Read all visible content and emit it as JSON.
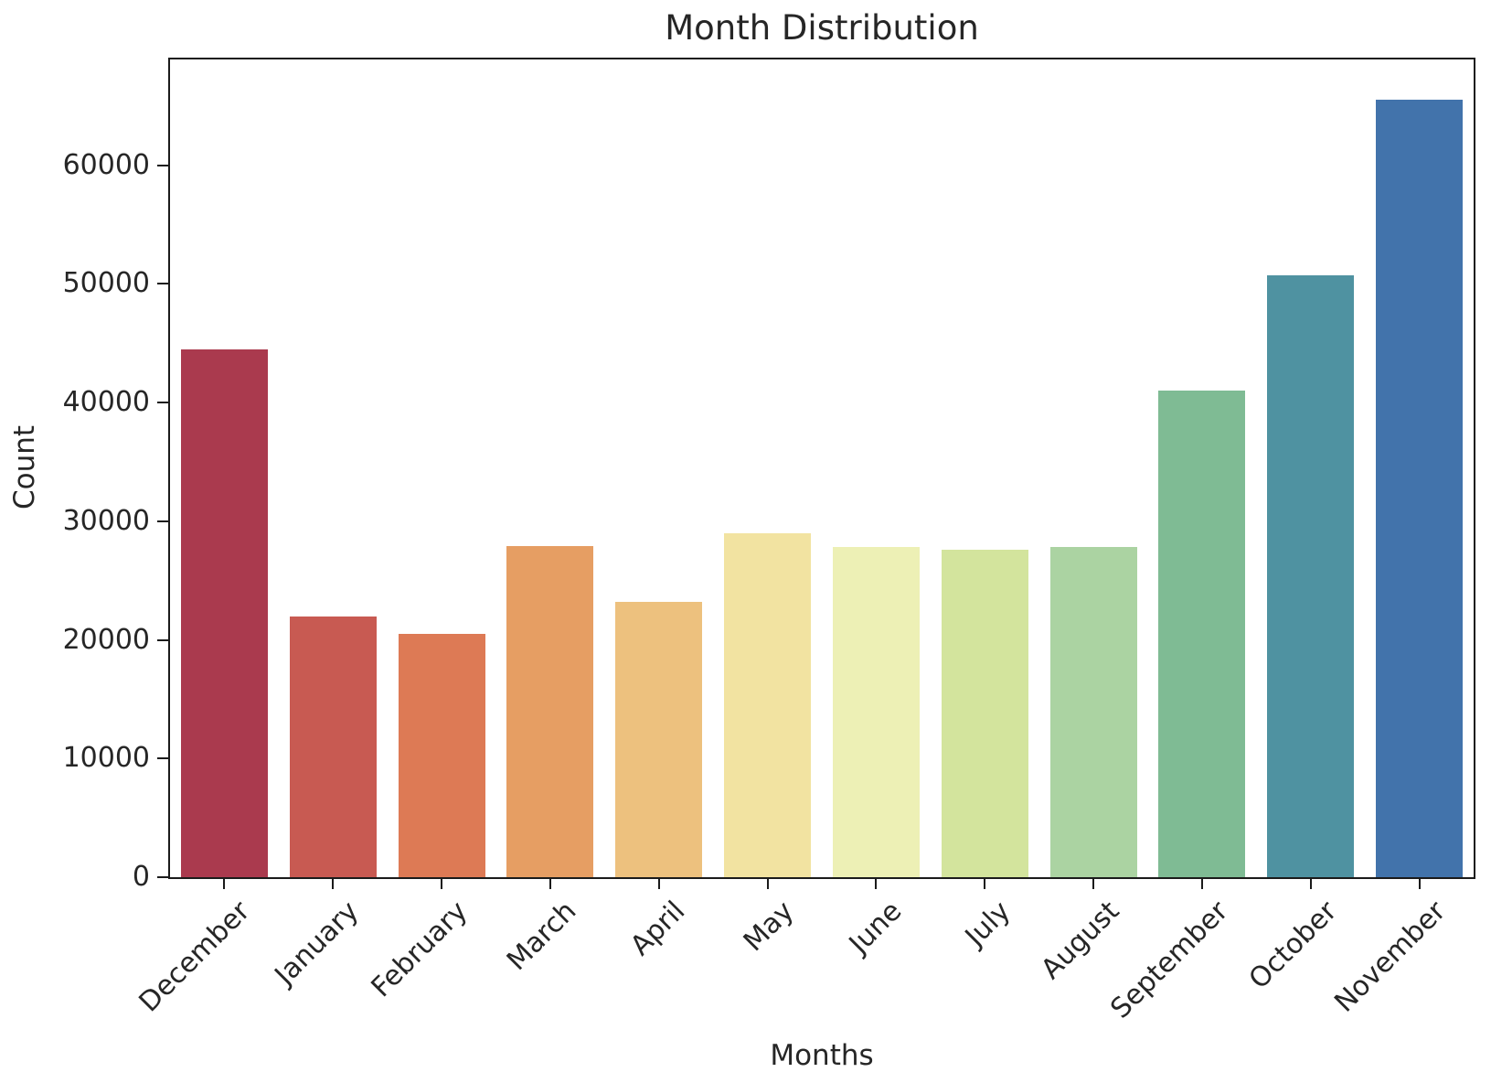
{
  "title": "Month Distribution",
  "colors": {
    "background": "#ffffff",
    "spine": "#1b1b1b",
    "text": "#262626"
  },
  "chart_data": {
    "type": "bar",
    "title": "Month Distribution",
    "xlabel": "Months",
    "ylabel": "Count",
    "categories": [
      "December",
      "January",
      "February",
      "March",
      "April",
      "May",
      "June",
      "July",
      "August",
      "September",
      "October",
      "November"
    ],
    "values": [
      44500,
      22000,
      20500,
      27900,
      23200,
      29000,
      27850,
      27600,
      27800,
      41000,
      50700,
      65500
    ],
    "bar_colors": [
      "#aa3a4e",
      "#c85a52",
      "#dd7a55",
      "#e69e63",
      "#edc17e",
      "#f2e3a1",
      "#edf0b5",
      "#d3e49d",
      "#abd3a2",
      "#7fbb94",
      "#4f92a1",
      "#4273ab"
    ],
    "y_ticks": [
      0,
      10000,
      20000,
      30000,
      40000,
      50000,
      60000
    ],
    "ylim": [
      0,
      68900
    ],
    "x_tick_rotation_deg": 45,
    "grid": false,
    "legend": null,
    "bar_width_fraction": 0.8
  }
}
